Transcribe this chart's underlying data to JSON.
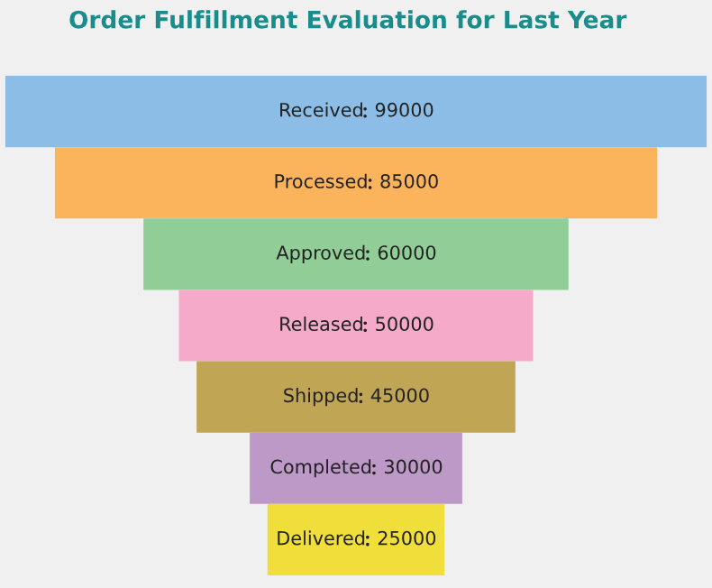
{
  "chart_data": {
    "type": "other",
    "title": "Order Fulfillment Evaluation for Last Year",
    "categories": [
      "Received",
      "Processed",
      "Approved",
      "Released",
      "Shipped",
      "Completed",
      "Delivered"
    ],
    "values": [
      99000,
      85000,
      60000,
      50000,
      45000,
      30000,
      25000
    ],
    "colors": [
      "#8bbde6",
      "#fbb45c",
      "#90cd97",
      "#f6aac9",
      "#bfa554",
      "#bc99c7",
      "#f0de3a"
    ],
    "data_labels": true
  }
}
